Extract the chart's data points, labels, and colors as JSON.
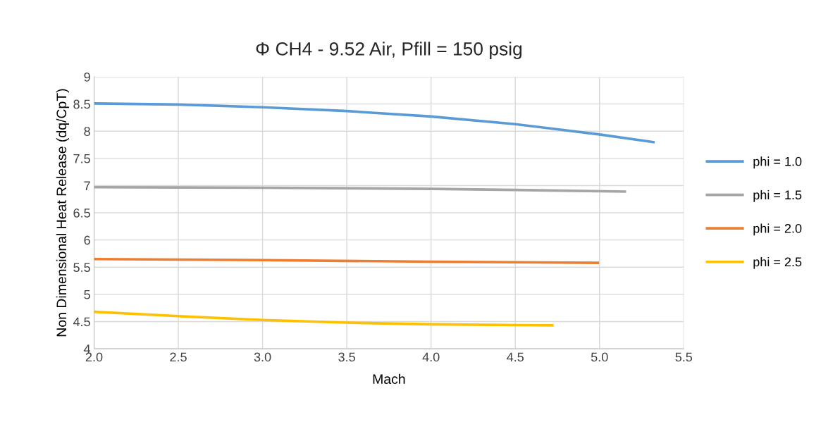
{
  "chart_data": {
    "type": "line",
    "title": "Φ CH4 - 9.52 Air, Pfill = 150 psig",
    "xlabel": "Mach",
    "ylabel": "Non Dimensional Heat Release (dq/CpT)",
    "series": [
      {
        "name": "phi = 1.0",
        "color": "#5b9bd5",
        "x": [
          2.0,
          2.5,
          3.0,
          3.5,
          4.0,
          4.5,
          5.0,
          5.32
        ],
        "values": [
          8.51,
          8.49,
          8.44,
          8.37,
          8.27,
          8.13,
          7.94,
          7.8
        ]
      },
      {
        "name": "phi = 1.5",
        "color": "#a5a5a5",
        "x": [
          2.0,
          3.0,
          4.0,
          4.5,
          5.15
        ],
        "values": [
          6.97,
          6.96,
          6.94,
          6.92,
          6.89
        ]
      },
      {
        "name": "phi = 2.0",
        "color": "#ed7d31",
        "x": [
          2.0,
          3.0,
          4.0,
          4.99
        ],
        "values": [
          5.65,
          5.63,
          5.6,
          5.58
        ]
      },
      {
        "name": "phi = 2.5",
        "color": "#ffc000",
        "x": [
          2.0,
          2.5,
          3.0,
          3.5,
          4.0,
          4.72
        ],
        "values": [
          4.68,
          4.6,
          4.53,
          4.48,
          4.45,
          4.43
        ]
      }
    ],
    "xlim": [
      2.0,
      5.5
    ],
    "xticks": [
      {
        "value": 2.0,
        "label": "2.0"
      },
      {
        "value": 2.5,
        "label": "2.5"
      },
      {
        "value": 3.0,
        "label": "3.0"
      },
      {
        "value": 3.5,
        "label": "3.5"
      },
      {
        "value": 4.0,
        "label": "4.0"
      },
      {
        "value": 4.5,
        "label": "4.5"
      },
      {
        "value": 5.0,
        "label": "5.0"
      },
      {
        "value": 5.5,
        "label": "5.5"
      }
    ],
    "ylim": [
      4,
      9
    ],
    "yticks": [
      4,
      4.5,
      5,
      5.5,
      6,
      6.5,
      7,
      7.5,
      8,
      8.5,
      9
    ],
    "grid": true,
    "legend": "right",
    "marker": "none",
    "line_style": "solid"
  }
}
